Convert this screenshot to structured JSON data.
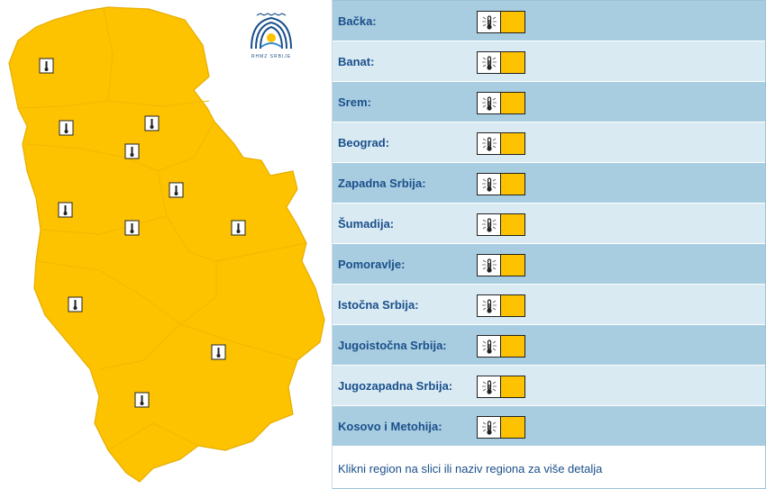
{
  "logo": {
    "text": "RHMZ SRBIJE"
  },
  "warning_level_color": "#fdc300",
  "map_fill_color": "#fdc300",
  "map_border_color": "#e0a800",
  "warning_icon": "thermometer-heat-icon",
  "regions": [
    {
      "label": "Bačka:",
      "level": "yellow"
    },
    {
      "label": "Banat:",
      "level": "yellow"
    },
    {
      "label": "Srem:",
      "level": "yellow"
    },
    {
      "label": "Beograd:",
      "level": "yellow"
    },
    {
      "label": "Zapadna Srbija:",
      "level": "yellow"
    },
    {
      "label": "Šumadija:",
      "level": "yellow"
    },
    {
      "label": "Pomoravlje:",
      "level": "yellow"
    },
    {
      "label": "Istočna Srbija:",
      "level": "yellow"
    },
    {
      "label": "Jugoistočna Srbija:",
      "level": "yellow"
    },
    {
      "label": "Jugozapadna Srbija:",
      "level": "yellow"
    },
    {
      "label": "Kosovo i Metohija:",
      "level": "yellow"
    }
  ],
  "footer_note": "Klikni region na slici ili naziv regiona za više detalja"
}
